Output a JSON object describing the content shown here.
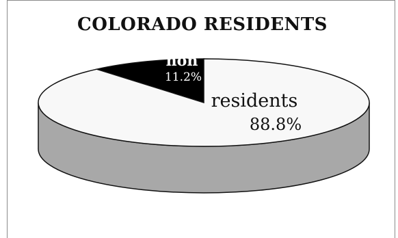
{
  "chart_data": {
    "type": "pie",
    "style": "3d",
    "title": "COLORADO RESIDENTS",
    "slices": [
      {
        "label": "residents",
        "value": 88.8,
        "value_label": "88.8%",
        "color": "#f8f8f8"
      },
      {
        "label": "non",
        "value": 11.2,
        "value_label": "11.2%",
        "color": "#000000"
      }
    ],
    "side_color": "#a8a8a8",
    "legend": "none"
  }
}
